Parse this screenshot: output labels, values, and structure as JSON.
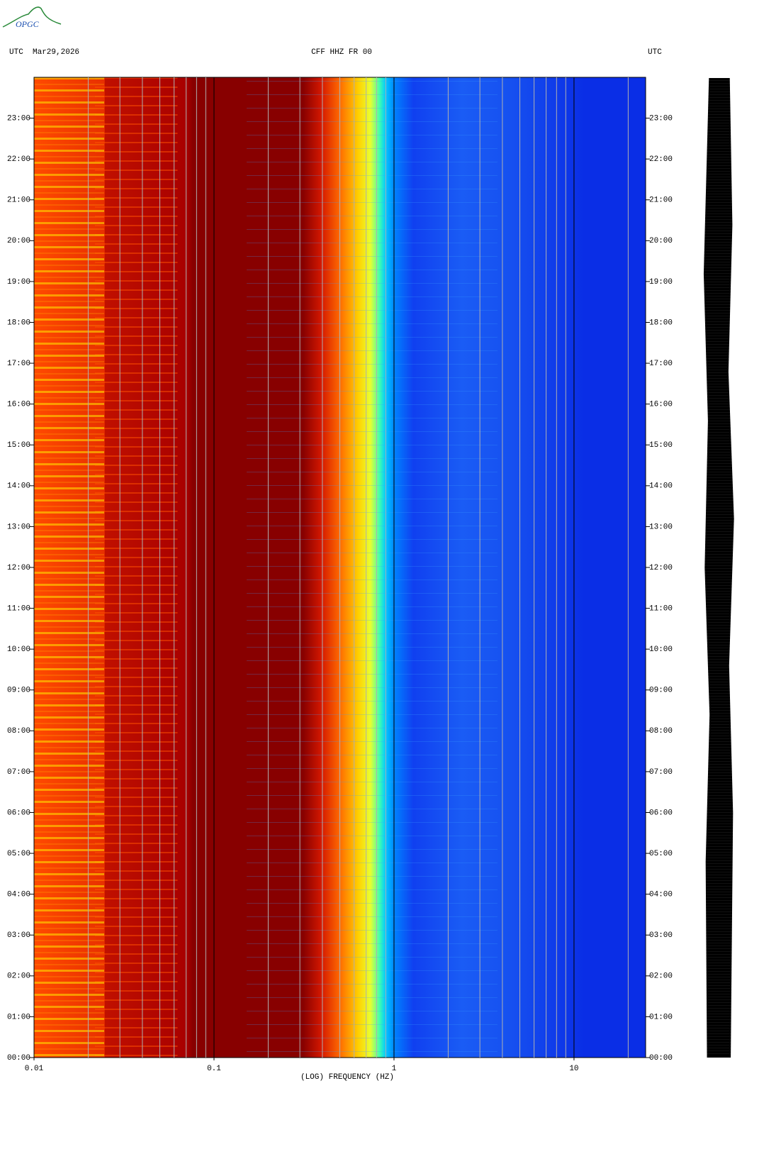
{
  "logo": "OPGC",
  "chart_data": {
    "type": "spectrogram",
    "header_left": "UTC  Mar29,2026",
    "title": "CFF HHZ FR 00",
    "header_right": "UTC",
    "xlabel": "(LOG) FREQUENCY (HZ)",
    "xlog": true,
    "xlim": [
      0.01,
      25
    ],
    "xticks": [
      0.01,
      0.1,
      1,
      10
    ],
    "xminorticks": [
      0.02,
      0.03,
      0.04,
      0.05,
      0.06,
      0.07,
      0.08,
      0.09,
      0.2,
      0.3,
      0.4,
      0.5,
      0.6,
      0.7,
      0.8,
      0.9,
      2,
      3,
      4,
      5,
      6,
      7,
      8,
      9,
      20
    ],
    "ylim": [
      0,
      24
    ],
    "yticks": [
      {
        "value": 0,
        "label": "00:00"
      },
      {
        "value": 1,
        "label": "01:00"
      },
      {
        "value": 2,
        "label": "02:00"
      },
      {
        "value": 3,
        "label": "03:00"
      },
      {
        "value": 4,
        "label": "04:00"
      },
      {
        "value": 5,
        "label": "05:00"
      },
      {
        "value": 6,
        "label": "06:00"
      },
      {
        "value": 7,
        "label": "07:00"
      },
      {
        "value": 8,
        "label": "08:00"
      },
      {
        "value": 9,
        "label": "09:00"
      },
      {
        "value": 10,
        "label": "10:00"
      },
      {
        "value": 11,
        "label": "11:00"
      },
      {
        "value": 12,
        "label": "12:00"
      },
      {
        "value": 13,
        "label": "13:00"
      },
      {
        "value": 14,
        "label": "14:00"
      },
      {
        "value": 15,
        "label": "15:00"
      },
      {
        "value": 16,
        "label": "16:00"
      },
      {
        "value": 17,
        "label": "17:00"
      },
      {
        "value": 18,
        "label": "18:00"
      },
      {
        "value": 19,
        "label": "19:00"
      },
      {
        "value": 20,
        "label": "20:00"
      },
      {
        "value": 21,
        "label": "21:00"
      },
      {
        "value": 22,
        "label": "22:00"
      },
      {
        "value": 23,
        "label": "23:00"
      }
    ]
  }
}
